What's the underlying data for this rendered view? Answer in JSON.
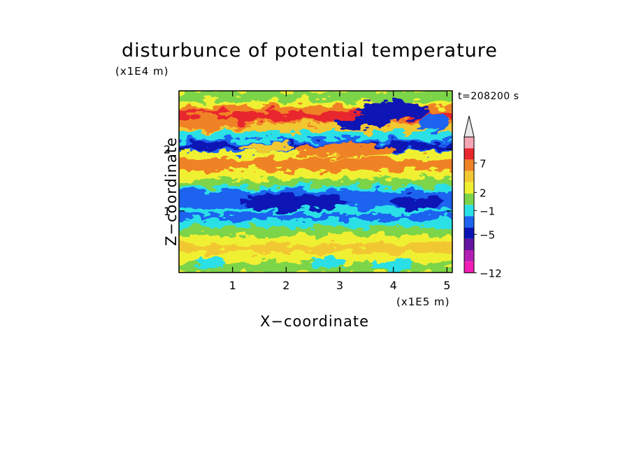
{
  "chart_data": {
    "type": "heatmap",
    "title": "disturbunce of potential temperature",
    "xlabel": "X−coordinate",
    "ylabel": "Z−coordinate",
    "x_unit": "(x1E5 m)",
    "z_unit": "(x1E4 m)",
    "time_label": "t=208200 s",
    "xlim": [
      0,
      5.1
    ],
    "ylim": [
      0,
      2.95
    ],
    "x_ticks": [
      "1",
      "2",
      "3",
      "4",
      "5"
    ],
    "y_ticks": [
      "1",
      "2"
    ],
    "colorbar": {
      "tick_labels": [
        "7",
        "2",
        "−1",
        "−5",
        "−12"
      ],
      "colors": [
        "#f4a6b4",
        "#e8262d",
        "#f08228",
        "#f2c832",
        "#f0f032",
        "#7cd44a",
        "#2ae0e6",
        "#1e64f0",
        "#0a14b4",
        "#6414a0",
        "#b41eb4",
        "#f01eb4"
      ],
      "extend_top_color": "#e8e8e8"
    }
  }
}
